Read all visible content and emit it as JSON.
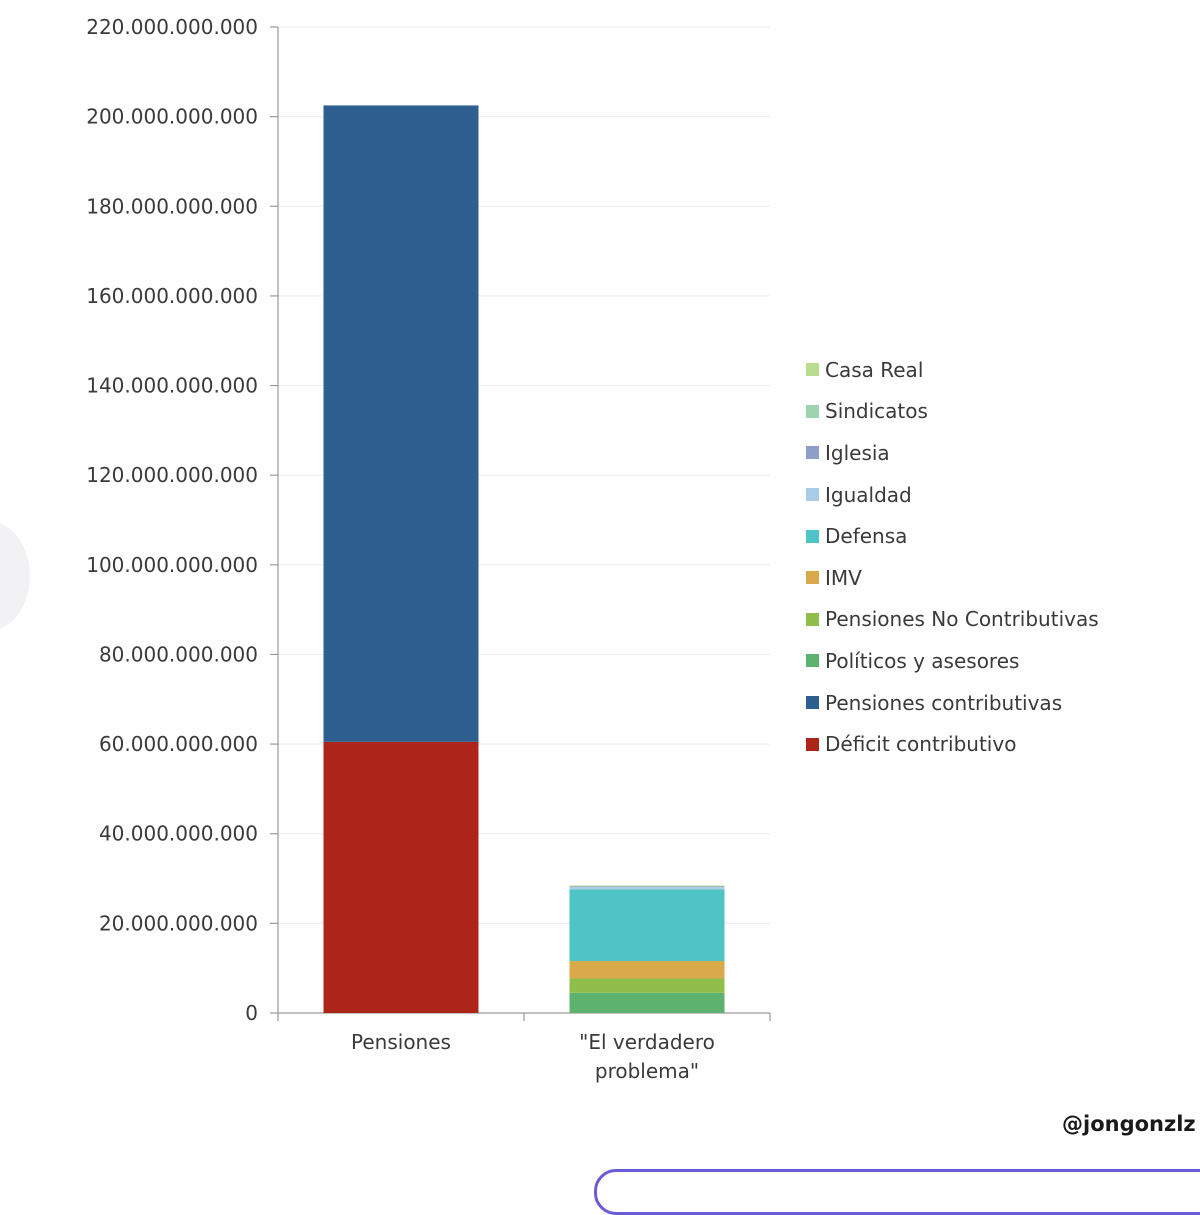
{
  "chart_data": {
    "type": "bar",
    "stacked": true,
    "title": "",
    "xlabel": "",
    "ylabel": "",
    "ylim": [
      0,
      220000000000
    ],
    "yticks": [
      0,
      20000000000,
      40000000000,
      60000000000,
      80000000000,
      100000000000,
      120000000000,
      140000000000,
      160000000000,
      180000000000,
      200000000000,
      220000000000
    ],
    "ytick_labels": [
      "0",
      "20.000.000.000",
      "40.000.000.000",
      "60.000.000.000",
      "80.000.000.000",
      "100.000.000.000",
      "120.000.000.000",
      "140.000.000.000",
      "160.000.000.000",
      "180.000.000.000",
      "200.000.000.000",
      "220.000.000.000"
    ],
    "grid": true,
    "legend_position": "right",
    "categories": [
      "Pensiones",
      "\"El verdadero problema\""
    ],
    "series": [
      {
        "name": "Déficit contributivo",
        "color": "#ad2418",
        "values": [
          60500000000,
          0
        ]
      },
      {
        "name": "Pensiones contributivas",
        "color": "#2c5e8f",
        "values": [
          142000000000,
          0
        ]
      },
      {
        "name": "Políticos y asesores",
        "color": "#5db36e",
        "values": [
          0,
          4500000000
        ]
      },
      {
        "name": "Pensiones No Contributivas",
        "color": "#8fbf4a",
        "values": [
          0,
          3200000000
        ]
      },
      {
        "name": "IMV",
        "color": "#d9a94a",
        "values": [
          0,
          3900000000
        ]
      },
      {
        "name": "Defensa",
        "color": "#4ec4c6",
        "values": [
          0,
          16000000000
        ]
      },
      {
        "name": "Igualdad",
        "color": "#a9cde8",
        "values": [
          0,
          500000000
        ]
      },
      {
        "name": "Iglesia",
        "color": "#8f9ec9",
        "values": [
          0,
          150000000
        ]
      },
      {
        "name": "Sindicatos",
        "color": "#9fd3b0",
        "values": [
          0,
          10000000
        ]
      },
      {
        "name": "Casa Real",
        "color": "#b9dc8f",
        "values": [
          0,
          8000000
        ]
      }
    ]
  },
  "legend": {
    "items": [
      {
        "label": "Casa Real",
        "color": "#b9dc8f"
      },
      {
        "label": "Sindicatos",
        "color": "#9fd3b0"
      },
      {
        "label": "Iglesia",
        "color": "#8f9ec9"
      },
      {
        "label": "Igualdad",
        "color": "#a9cde8"
      },
      {
        "label": "Defensa",
        "color": "#4ec4c6"
      },
      {
        "label": "IMV",
        "color": "#d9a94a"
      },
      {
        "label": "Pensiones No Contributivas",
        "color": "#8fbf4a"
      },
      {
        "label": "Políticos y asesores",
        "color": "#5db36e"
      },
      {
        "label": "Pensiones contributivas",
        "color": "#2c5e8f"
      },
      {
        "label": "Déficit contributivo",
        "color": "#ad2418"
      }
    ]
  },
  "credit": "@jongonzlz"
}
